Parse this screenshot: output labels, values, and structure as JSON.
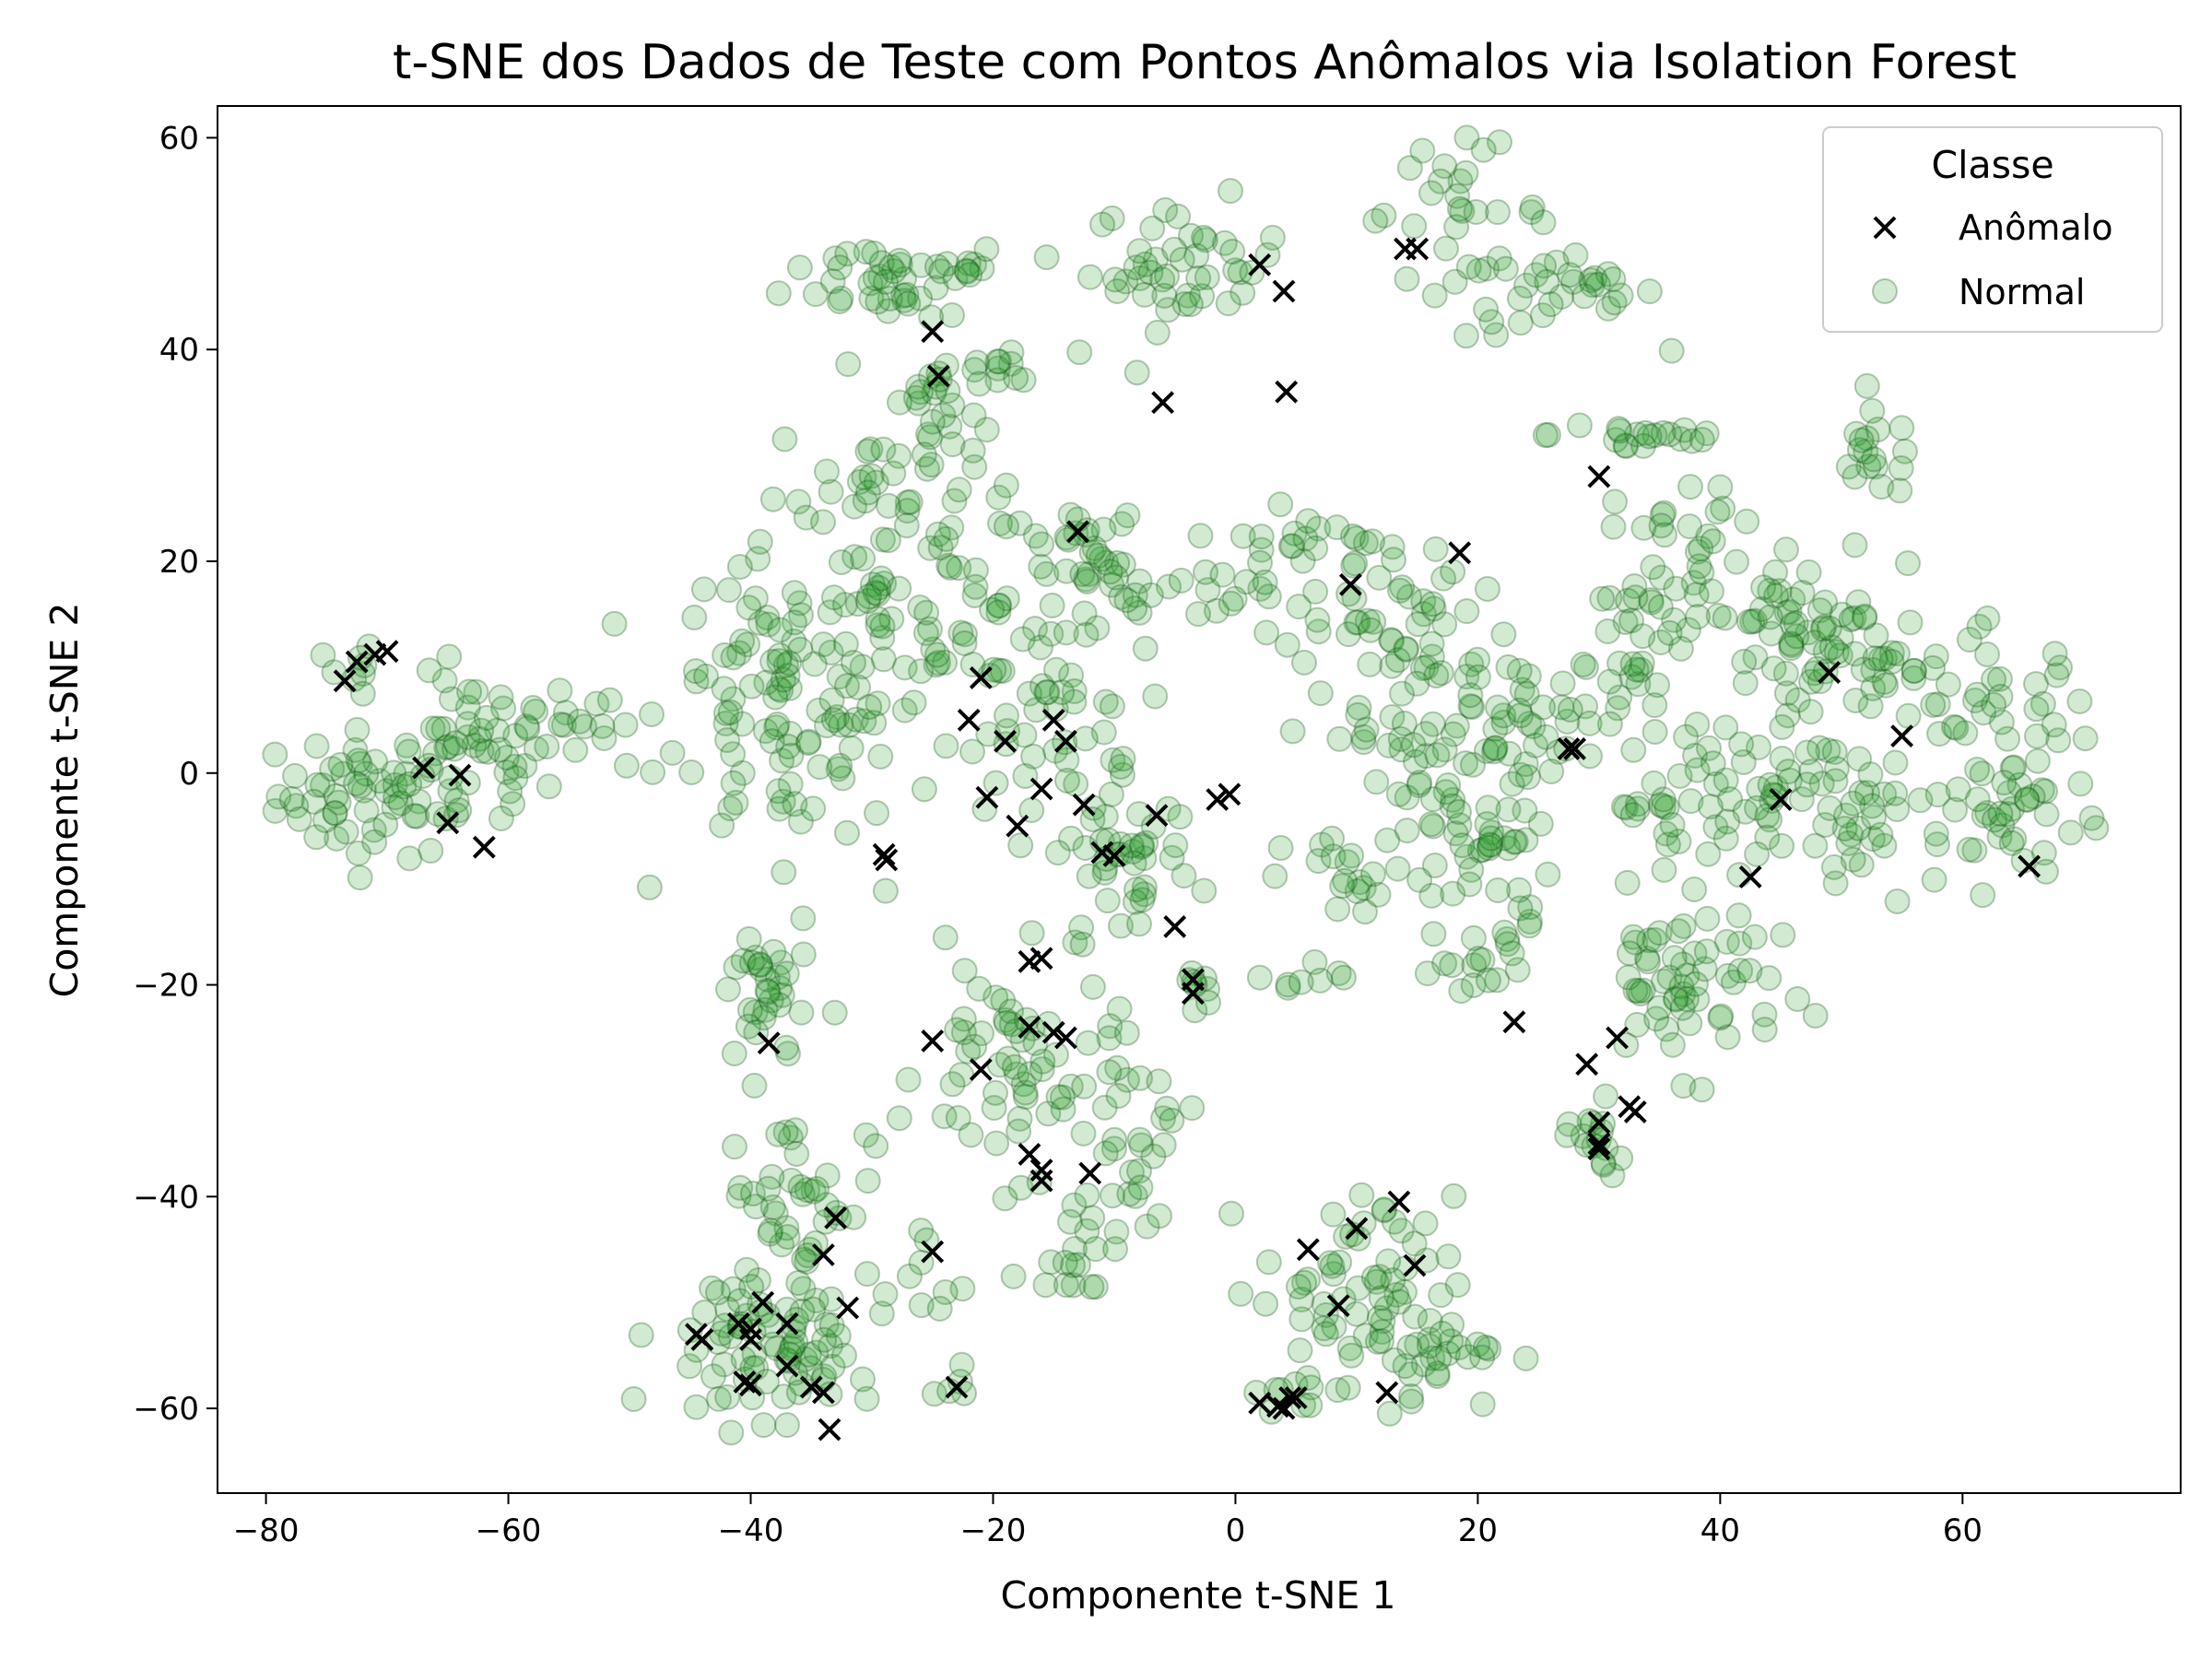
{
  "chart_data": {
    "type": "scatter",
    "title": "t-SNE dos Dados de Teste com Pontos Anômalos via Isolation Forest",
    "xlabel": "Componente t-SNE 1",
    "ylabel": "Componente t-SNE 2",
    "xlim": [
      -84,
      78
    ],
    "ylim": [
      -68,
      63
    ],
    "xticks": [
      -80,
      -60,
      -40,
      -20,
      0,
      20,
      40,
      60
    ],
    "yticks": [
      -60,
      -40,
      -20,
      0,
      20,
      40,
      60
    ],
    "xtick_labels": [
      "−80",
      "−60",
      "−40",
      "−20",
      "0",
      "20",
      "40",
      "60"
    ],
    "ytick_labels": [
      "−60",
      "−40",
      "−20",
      "0",
      "20",
      "40",
      "60"
    ],
    "grid": false,
    "legend": {
      "title": "Classe",
      "position": "top-right",
      "entries": [
        "Anômalo",
        "Normal"
      ]
    },
    "normal_color": "#2ca02c",
    "normal_edge": "#145214",
    "anomaly_color": "#000000",
    "normal_clusters": [
      {
        "cx": -71,
        "cy": -2,
        "sx": 4,
        "sy": 3,
        "n": 60
      },
      {
        "cx": -63,
        "cy": 1,
        "sx": 3,
        "sy": 4,
        "n": 40
      },
      {
        "cx": -56,
        "cy": 5,
        "sx": 3,
        "sy": 2,
        "n": 20
      },
      {
        "cx": -73,
        "cy": 9,
        "sx": 1,
        "sy": 2,
        "n": 8
      },
      {
        "cx": -29,
        "cy": 47,
        "sx": 4,
        "sy": 2,
        "n": 35
      },
      {
        "cx": -22,
        "cy": 48,
        "sx": 1,
        "sy": 1,
        "n": 8
      },
      {
        "cx": -25,
        "cy": 34,
        "sx": 2,
        "sy": 4,
        "n": 30
      },
      {
        "cx": -30,
        "cy": 28,
        "sx": 4,
        "sy": 3,
        "n": 25
      },
      {
        "cx": -19,
        "cy": 38,
        "sx": 3,
        "sy": 1,
        "n": 12
      },
      {
        "cx": -4,
        "cy": 48,
        "sx": 4,
        "sy": 3,
        "n": 45
      },
      {
        "cx": 18,
        "cy": 53,
        "sx": 4,
        "sy": 3,
        "n": 30
      },
      {
        "cx": 27,
        "cy": 45,
        "sx": 4,
        "sy": 2,
        "n": 30
      },
      {
        "cx": 34,
        "cy": 32,
        "sx": 4,
        "sy": 1,
        "n": 20
      },
      {
        "cx": 53,
        "cy": 30,
        "sx": 2,
        "sy": 2,
        "n": 18
      },
      {
        "cx": -37,
        "cy": 7,
        "sx": 5,
        "sy": 7,
        "n": 110
      },
      {
        "cx": -26,
        "cy": 13,
        "sx": 5,
        "sy": 6,
        "n": 60
      },
      {
        "cx": -16,
        "cy": 5,
        "sx": 4,
        "sy": 5,
        "n": 40
      },
      {
        "cx": -11,
        "cy": 19,
        "sx": 5,
        "sy": 4,
        "n": 50
      },
      {
        "cx": -9,
        "cy": -8,
        "sx": 3,
        "sy": 5,
        "n": 45
      },
      {
        "cx": 2,
        "cy": 20,
        "sx": 3,
        "sy": 3,
        "n": 20
      },
      {
        "cx": 10,
        "cy": 18,
        "sx": 3,
        "sy": 4,
        "n": 35
      },
      {
        "cx": 16,
        "cy": 12,
        "sx": 3,
        "sy": 3,
        "n": 25
      },
      {
        "cx": 12,
        "cy": 3,
        "sx": 4,
        "sy": 3,
        "n": 25
      },
      {
        "cx": 20,
        "cy": -5,
        "sx": 3,
        "sy": 7,
        "n": 70
      },
      {
        "cx": 10,
        "cy": -10,
        "sx": 3,
        "sy": 2,
        "n": 20
      },
      {
        "cx": 26,
        "cy": 5,
        "sx": 3,
        "sy": 3,
        "n": 20
      },
      {
        "cx": 34,
        "cy": 10,
        "sx": 3,
        "sy": 6,
        "n": 40
      },
      {
        "cx": 37,
        "cy": 22,
        "sx": 3,
        "sy": 3,
        "n": 25
      },
      {
        "cx": 45,
        "cy": 15,
        "sx": 4,
        "sy": 4,
        "n": 40
      },
      {
        "cx": 51,
        "cy": 10,
        "sx": 4,
        "sy": 3,
        "n": 45
      },
      {
        "cx": 52,
        "cy": -4,
        "sx": 5,
        "sy": 4,
        "n": 40
      },
      {
        "cx": 63,
        "cy": 5,
        "sx": 4,
        "sy": 4,
        "n": 45
      },
      {
        "cx": 65,
        "cy": -5,
        "sx": 3,
        "sy": 3,
        "n": 25
      },
      {
        "cx": 36,
        "cy": -2,
        "sx": 3,
        "sy": 2,
        "n": 20
      },
      {
        "cx": 45,
        "cy": -4,
        "sx": 3,
        "sy": 3,
        "n": 25
      },
      {
        "cx": 37,
        "cy": -20,
        "sx": 4,
        "sy": 4,
        "n": 60
      },
      {
        "cx": 30,
        "cy": -33,
        "sx": 1,
        "sy": 2,
        "n": 10
      },
      {
        "cx": 21,
        "cy": -19,
        "sx": 2,
        "sy": 2,
        "n": 12
      },
      {
        "cx": -39,
        "cy": -21,
        "sx": 2,
        "sy": 4,
        "n": 35
      },
      {
        "cx": -18,
        "cy": -28,
        "sx": 4,
        "sy": 5,
        "n": 60
      },
      {
        "cx": -8,
        "cy": -35,
        "sx": 2,
        "sy": 4,
        "n": 25
      },
      {
        "cx": -13,
        "cy": -44,
        "sx": 2,
        "sy": 3,
        "n": 20
      },
      {
        "cx": -36,
        "cy": -40,
        "sx": 3,
        "sy": 4,
        "n": 40
      },
      {
        "cx": -42,
        "cy": -53,
        "sx": 3,
        "sy": 4,
        "n": 45
      },
      {
        "cx": -36,
        "cy": -56,
        "sx": 2,
        "sy": 3,
        "n": 35
      },
      {
        "cx": 10,
        "cy": -48,
        "sx": 4,
        "sy": 4,
        "n": 50
      },
      {
        "cx": 15,
        "cy": -54,
        "sx": 4,
        "sy": 3,
        "n": 40
      },
      {
        "cx": 5,
        "cy": -59,
        "sx": 1,
        "sy": 1,
        "n": 8
      },
      {
        "cx": -26,
        "cy": -48,
        "sx": 2,
        "sy": 3,
        "n": 10
      },
      {
        "cx": -3,
        "cy": -20,
        "sx": 1,
        "sy": 1,
        "n": 8
      },
      {
        "cx": 5,
        "cy": -19,
        "sx": 2,
        "sy": 1,
        "n": 8
      },
      {
        "cx": -23,
        "cy": -58,
        "sx": 1,
        "sy": 1,
        "n": 5
      },
      {
        "cx": 30,
        "cy": -36,
        "sx": 1,
        "sy": 1,
        "n": 6
      }
    ],
    "anomalies": [
      [
        -73.5,
        8.7
      ],
      [
        -72.5,
        10.5
      ],
      [
        -71,
        11.2
      ],
      [
        -70,
        11.5
      ],
      [
        -67,
        0.5
      ],
      [
        -65,
        -4.7
      ],
      [
        -64,
        -0.2
      ],
      [
        -62,
        -7
      ],
      [
        -25,
        41.7
      ],
      [
        -24.5,
        37.5
      ],
      [
        -6,
        35
      ],
      [
        4,
        45.5
      ],
      [
        2,
        48
      ],
      [
        4.2,
        36
      ],
      [
        14,
        49.5
      ],
      [
        15,
        49.5
      ],
      [
        30,
        28
      ],
      [
        -13,
        22.8
      ],
      [
        -21,
        9
      ],
      [
        -22,
        5
      ],
      [
        -19,
        3
      ],
      [
        -20.5,
        -2.3
      ],
      [
        -18,
        -5
      ],
      [
        -16,
        -1.5
      ],
      [
        -15,
        5
      ],
      [
        -14,
        3
      ],
      [
        -12.5,
        -3
      ],
      [
        -11,
        -7.5
      ],
      [
        -10,
        -7.8
      ],
      [
        -6.5,
        -4
      ],
      [
        -5,
        -14.5
      ],
      [
        -3.5,
        -19.5
      ],
      [
        -3.5,
        -20.8
      ],
      [
        -1.5,
        -2.5
      ],
      [
        -0.5,
        -2
      ],
      [
        -29,
        -7.7
      ],
      [
        -28.8,
        -8.2
      ],
      [
        -16,
        -17.5
      ],
      [
        -17,
        -17.8
      ],
      [
        -17,
        -24
      ],
      [
        -15,
        -24.5
      ],
      [
        -14,
        -25
      ],
      [
        -21,
        -28
      ],
      [
        -25,
        -25.3
      ],
      [
        -38.5,
        -25.5
      ],
      [
        -17,
        -36
      ],
      [
        -16,
        -37.5
      ],
      [
        -16,
        -38.5
      ],
      [
        -12,
        -37.8
      ],
      [
        -25,
        -45.2
      ],
      [
        -33,
        -42
      ],
      [
        -34,
        -45.5
      ],
      [
        -32,
        -50.5
      ],
      [
        -44,
        -53.5
      ],
      [
        -44.5,
        -53
      ],
      [
        -41,
        -52
      ],
      [
        -40,
        -52.5
      ],
      [
        -40,
        -53.5
      ],
      [
        -39,
        -50
      ],
      [
        -37,
        -52
      ],
      [
        -40.5,
        -57.5
      ],
      [
        -40,
        -57.8
      ],
      [
        -37,
        -56
      ],
      [
        -35,
        -58
      ],
      [
        -34,
        -58.5
      ],
      [
        -33.5,
        -62
      ],
      [
        -23,
        -58
      ],
      [
        9.5,
        17.8
      ],
      [
        18.5,
        20.8
      ],
      [
        27.5,
        2.3
      ],
      [
        28,
        2.3
      ],
      [
        23,
        -23.5
      ],
      [
        29,
        -27.5
      ],
      [
        31.5,
        -25
      ],
      [
        30,
        -33
      ],
      [
        30,
        -35
      ],
      [
        30,
        -35.5
      ],
      [
        32.5,
        -31.5
      ],
      [
        33,
        -32
      ],
      [
        42.5,
        -9.8
      ],
      [
        45,
        -2.5
      ],
      [
        49,
        9.5
      ],
      [
        55,
        3.5
      ],
      [
        65.5,
        -8.8
      ],
      [
        6,
        -45
      ],
      [
        8.5,
        -50.3
      ],
      [
        10,
        -43
      ],
      [
        13.5,
        -40.5
      ],
      [
        14.8,
        -46.5
      ],
      [
        12.5,
        -58.5
      ],
      [
        2,
        -59.5
      ],
      [
        3.5,
        -59.8
      ],
      [
        4,
        -60
      ],
      [
        4.5,
        -59
      ],
      [
        5,
        -59
      ]
    ]
  }
}
